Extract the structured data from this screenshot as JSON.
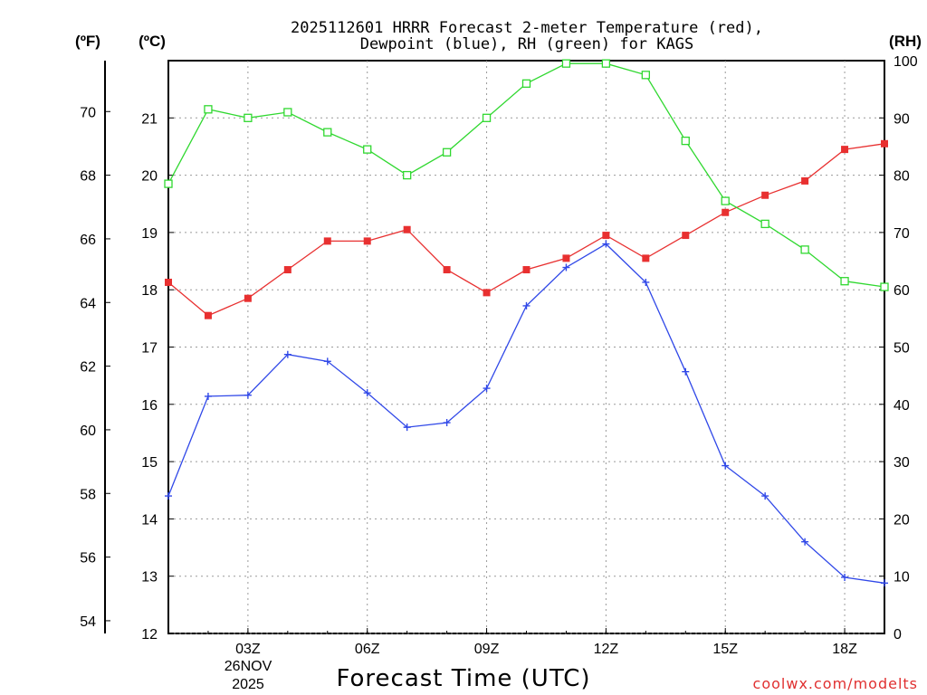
{
  "chart_data": {
    "type": "line",
    "title_lines": [
      "2025112601 HRRR Forecast 2-meter Temperature (red),",
      "Dewpoint (blue), RH (green) for KAGS"
    ],
    "xlabel": "Forecast Time (UTC)",
    "credit": "coolwx.com/modelts",
    "x_hours": [
      1,
      2,
      3,
      4,
      5,
      6,
      7,
      8,
      9,
      10,
      11,
      12,
      13,
      14,
      15,
      16,
      17,
      18,
      19
    ],
    "x_range": [
      1,
      19
    ],
    "x_tick_hours": [
      3,
      6,
      9,
      12,
      15,
      18
    ],
    "x_tick_labels": [
      "03Z",
      "06Z",
      "09Z",
      "12Z",
      "15Z",
      "18Z"
    ],
    "date_label": [
      "26NOV",
      "2025"
    ],
    "axes": {
      "fahrenheit": {
        "unit_label": "(ºF)",
        "range": [
          53.6,
          71.6
        ],
        "ticks": [
          54,
          56,
          58,
          60,
          62,
          64,
          66,
          68,
          70
        ]
      },
      "celsius": {
        "unit_label": "(ºC)",
        "range": [
          12,
          22
        ],
        "ticks": [
          12,
          13,
          14,
          15,
          16,
          17,
          18,
          19,
          20,
          21
        ]
      },
      "rh": {
        "unit_label": "(RH)",
        "range": [
          0,
          100
        ],
        "ticks": [
          0,
          10,
          20,
          30,
          40,
          50,
          60,
          70,
          80,
          90,
          100
        ]
      }
    },
    "series": [
      {
        "name": "Temperature",
        "color": "#e83030",
        "axis": "celsius",
        "marker": "filled-square",
        "values": [
          18.13,
          17.55,
          17.85,
          18.35,
          18.85,
          18.85,
          19.05,
          18.35,
          17.95,
          18.35,
          18.55,
          18.95,
          18.55,
          18.95,
          19.35,
          19.65,
          19.9,
          20.45,
          20.55
        ]
      },
      {
        "name": "Dewpoint",
        "color": "#3048e8",
        "axis": "celsius",
        "marker": "plus",
        "values": [
          14.4,
          16.14,
          16.16,
          16.87,
          16.75,
          16.2,
          15.6,
          15.68,
          16.28,
          17.72,
          18.39,
          18.8,
          18.13,
          16.57,
          14.93,
          14.4,
          13.6,
          12.98,
          12.88
        ]
      },
      {
        "name": "RH",
        "color": "#30d830",
        "axis": "rh",
        "marker": "open-square",
        "values": [
          78.5,
          91.5,
          90,
          91,
          87.5,
          84.5,
          80,
          84,
          90,
          96,
          99.5,
          99.5,
          97.5,
          86,
          75.5,
          71.5,
          67,
          61.5,
          60.5
        ]
      }
    ]
  }
}
